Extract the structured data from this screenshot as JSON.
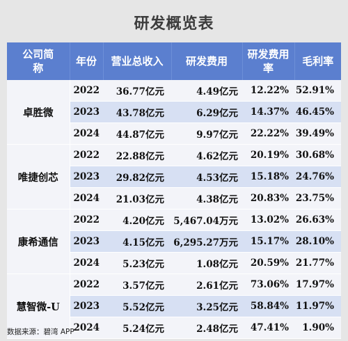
{
  "title": "研发概览表",
  "headers": {
    "company": "公司简称",
    "year": "年份",
    "revenue": "营业总收入",
    "rd_expense": "研发费用",
    "rd_rate": "研发费用率",
    "gross_margin": "毛利率"
  },
  "companies": [
    {
      "name": "卓胜微",
      "rows": [
        {
          "year": "2022",
          "revenue": "36.77亿元",
          "rd_expense": "4.49亿元",
          "rd_rate": "12.22%",
          "gross_margin": "52.91%"
        },
        {
          "year": "2023",
          "revenue": "43.78亿元",
          "rd_expense": "6.29亿元",
          "rd_rate": "14.37%",
          "gross_margin": "46.45%"
        },
        {
          "year": "2024",
          "revenue": "44.87亿元",
          "rd_expense": "9.97亿元",
          "rd_rate": "22.22%",
          "gross_margin": "39.49%"
        }
      ]
    },
    {
      "name": "唯捷创芯",
      "rows": [
        {
          "year": "2022",
          "revenue": "22.88亿元",
          "rd_expense": "4.62亿元",
          "rd_rate": "20.19%",
          "gross_margin": "30.68%"
        },
        {
          "year": "2023",
          "revenue": "29.82亿元",
          "rd_expense": "4.53亿元",
          "rd_rate": "15.18%",
          "gross_margin": "24.76%"
        },
        {
          "year": "2024",
          "revenue": "21.03亿元",
          "rd_expense": "4.38亿元",
          "rd_rate": "20.83%",
          "gross_margin": "23.75%"
        }
      ]
    },
    {
      "name": "康希通信",
      "rows": [
        {
          "year": "2022",
          "revenue": "4.20亿元",
          "rd_expense": "5,467.04万元",
          "rd_rate": "13.02%",
          "gross_margin": "26.63%"
        },
        {
          "year": "2023",
          "revenue": "4.15亿元",
          "rd_expense": "6,295.27万元",
          "rd_rate": "15.17%",
          "gross_margin": "28.10%"
        },
        {
          "year": "2024",
          "revenue": "5.23亿元",
          "rd_expense": "1.08亿元",
          "rd_rate": "20.59%",
          "gross_margin": "21.77%"
        }
      ]
    },
    {
      "name": "慧智微-U",
      "rows": [
        {
          "year": "2022",
          "revenue": "3.57亿元",
          "rd_expense": "2.61亿元",
          "rd_rate": "73.06%",
          "gross_margin": "17.97%"
        },
        {
          "year": "2023",
          "revenue": "5.52亿元",
          "rd_expense": "3.25亿元",
          "rd_rate": "58.84%",
          "gross_margin": "11.97%"
        },
        {
          "year": "2024",
          "revenue": "5.24亿元",
          "rd_expense": "2.48亿元",
          "rd_rate": "47.41%",
          "gross_margin": "1.90%"
        }
      ]
    }
  ],
  "source": "数据来源：碧湾 APP"
}
